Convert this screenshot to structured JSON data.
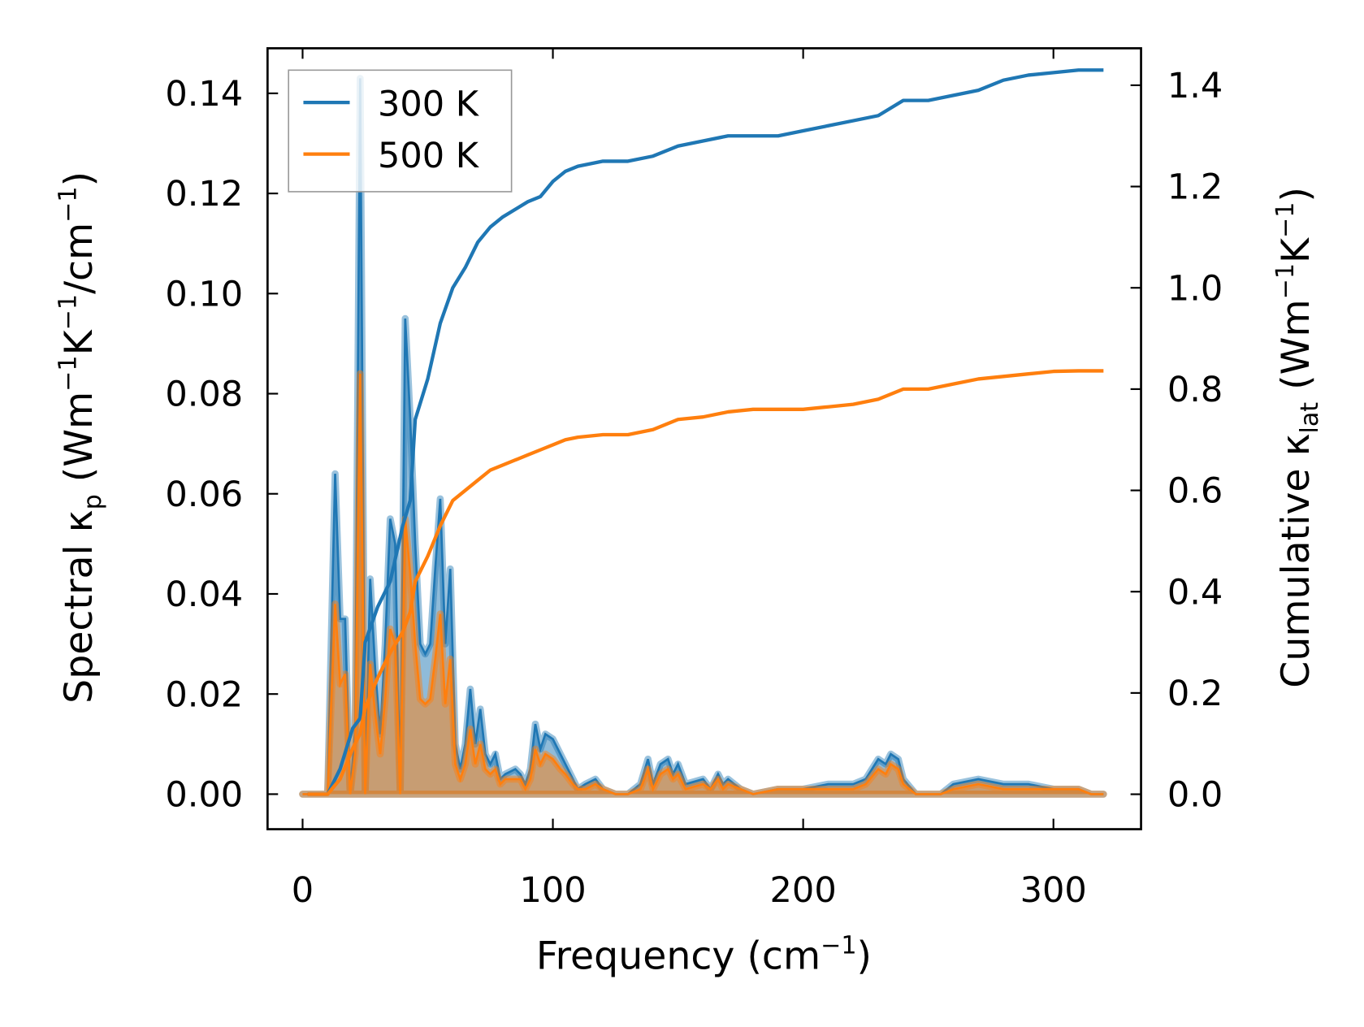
{
  "chart_data": {
    "type": "line",
    "title": "",
    "xlabel": {
      "main": "Frequency (cm",
      "sup": "−1",
      "end": ")"
    },
    "ylabel_left": {
      "a": "Spectral κ",
      "sub": "p",
      "b": " (Wm",
      "sup1": "−1",
      "c": "K",
      "sup2": "−1",
      "d": "/cm",
      "sup3": "−1",
      "e": ")"
    },
    "ylabel_right": {
      "a": "Cumulative κ",
      "sub": "lat",
      "b": " (Wm",
      "sup1": "−1",
      "c": "K",
      "sup2": "−1",
      "e": ")"
    },
    "xlim": [
      -14,
      335
    ],
    "ylim_left": [
      -0.007,
      0.149
    ],
    "ylim_right": [
      -0.069,
      1.473
    ],
    "xticks": [
      0,
      100,
      200,
      300
    ],
    "xtick_labels": [
      "0",
      "100",
      "200",
      "300"
    ],
    "yticks_left": [
      0,
      0.02,
      0.04,
      0.06,
      0.08,
      0.1,
      0.12,
      0.14
    ],
    "ytick_labels_left": [
      "0.00",
      "0.02",
      "0.04",
      "0.06",
      "0.08",
      "0.10",
      "0.12",
      "0.14"
    ],
    "yticks_right": [
      0,
      0.2,
      0.4,
      0.6,
      0.8,
      1.0,
      1.2,
      1.4
    ],
    "ytick_labels_right": [
      "0.0",
      "0.2",
      "0.4",
      "0.6",
      "0.8",
      "1.0",
      "1.2",
      "1.4"
    ],
    "legend": {
      "placement": "upper-left",
      "entries": [
        "300 K",
        "500 K"
      ]
    },
    "colors": {
      "300 K": "#1f77b4",
      "500 K": "#ff7f0e"
    },
    "spectral_x": [
      0,
      10,
      13,
      15,
      17,
      19,
      21,
      23,
      25,
      27,
      29,
      31,
      33,
      35,
      37,
      39,
      41,
      43,
      45,
      47,
      49,
      51,
      53,
      55,
      57,
      59,
      61,
      63,
      65,
      67,
      69,
      71,
      73,
      75,
      77,
      79,
      81,
      85,
      87,
      89,
      91,
      93,
      95,
      97,
      100,
      103,
      105,
      108,
      110,
      113,
      117,
      120,
      125,
      130,
      135,
      138,
      140,
      143,
      146,
      148,
      150,
      153,
      160,
      163,
      166,
      168,
      170,
      175,
      180,
      190,
      200,
      210,
      215,
      220,
      225,
      230,
      233,
      235,
      238,
      240,
      245,
      255,
      260,
      270,
      280,
      290,
      300,
      310,
      315,
      320
    ],
    "spectral_300K": [
      0,
      0,
      0.064,
      0.035,
      0.035,
      0,
      0.013,
      0.143,
      0,
      0.043,
      0.025,
      0.012,
      0.03,
      0.055,
      0.05,
      0,
      0.095,
      0.075,
      0.05,
      0.03,
      0.028,
      0.03,
      0.045,
      0.059,
      0.03,
      0.045,
      0.01,
      0.005,
      0.01,
      0.021,
      0.01,
      0.017,
      0.008,
      0.006,
      0.008,
      0.003,
      0.004,
      0.005,
      0.004,
      0.002,
      0.005,
      0.014,
      0.009,
      0.012,
      0.011,
      0.008,
      0.006,
      0.003,
      0.001,
      0.002,
      0.003,
      0.001,
      0,
      0,
      0.002,
      0.007,
      0.002,
      0.006,
      0.007,
      0.004,
      0.006,
      0.002,
      0.003,
      0.001,
      0.004,
      0.002,
      0.003,
      0.001,
      0,
      0.001,
      0.001,
      0.002,
      0.002,
      0.002,
      0.003,
      0.007,
      0.006,
      0.008,
      0.007,
      0.003,
      0,
      0,
      0.002,
      0.003,
      0.002,
      0.002,
      0.001,
      0.001,
      0,
      0
    ],
    "spectral_500K": [
      0,
      0,
      0.038,
      0.022,
      0.024,
      0,
      0.008,
      0.084,
      0,
      0.026,
      0.016,
      0.008,
      0.019,
      0.033,
      0.03,
      0,
      0.055,
      0.044,
      0.03,
      0.019,
      0.018,
      0.019,
      0.027,
      0.036,
      0.018,
      0.027,
      0.006,
      0.003,
      0.006,
      0.013,
      0.006,
      0.01,
      0.005,
      0.004,
      0.005,
      0.002,
      0.003,
      0.003,
      0.003,
      0.001,
      0.003,
      0.009,
      0.006,
      0.008,
      0.007,
      0.005,
      0.004,
      0.002,
      0.001,
      0.001,
      0.002,
      0.001,
      0,
      0,
      0.001,
      0.005,
      0.001,
      0.004,
      0.005,
      0.003,
      0.004,
      0.001,
      0.002,
      0.001,
      0.003,
      0.001,
      0.002,
      0.001,
      0,
      0.001,
      0.001,
      0.001,
      0.001,
      0.001,
      0.002,
      0.005,
      0.004,
      0.006,
      0.005,
      0.002,
      0,
      0,
      0.001,
      0.002,
      0.001,
      0.001,
      0.001,
      0.001,
      0,
      0
    ],
    "cumulative_x": [
      2,
      10,
      15,
      20,
      23,
      25,
      30,
      35,
      40,
      43,
      45,
      50,
      55,
      60,
      65,
      70,
      75,
      80,
      90,
      95,
      100,
      105,
      110,
      120,
      130,
      140,
      150,
      160,
      170,
      180,
      190,
      200,
      210,
      220,
      230,
      240,
      250,
      260,
      270,
      280,
      290,
      300,
      310,
      320
    ],
    "cumulative_300K": [
      0,
      0,
      0.05,
      0.13,
      0.15,
      0.3,
      0.37,
      0.42,
      0.53,
      0.58,
      0.74,
      0.82,
      0.93,
      1.0,
      1.04,
      1.09,
      1.12,
      1.14,
      1.17,
      1.18,
      1.21,
      1.23,
      1.24,
      1.25,
      1.25,
      1.26,
      1.28,
      1.29,
      1.3,
      1.3,
      1.3,
      1.31,
      1.32,
      1.33,
      1.34,
      1.37,
      1.37,
      1.38,
      1.39,
      1.41,
      1.42,
      1.425,
      1.43,
      1.43
    ],
    "cumulative_500K": [
      0,
      0,
      0.03,
      0.09,
      0.12,
      0.17,
      0.23,
      0.28,
      0.32,
      0.36,
      0.42,
      0.47,
      0.53,
      0.58,
      0.6,
      0.62,
      0.64,
      0.65,
      0.67,
      0.68,
      0.69,
      0.7,
      0.705,
      0.71,
      0.71,
      0.72,
      0.74,
      0.745,
      0.755,
      0.76,
      0.76,
      0.76,
      0.765,
      0.77,
      0.78,
      0.8,
      0.8,
      0.81,
      0.82,
      0.825,
      0.83,
      0.835,
      0.836,
      0.836
    ]
  }
}
